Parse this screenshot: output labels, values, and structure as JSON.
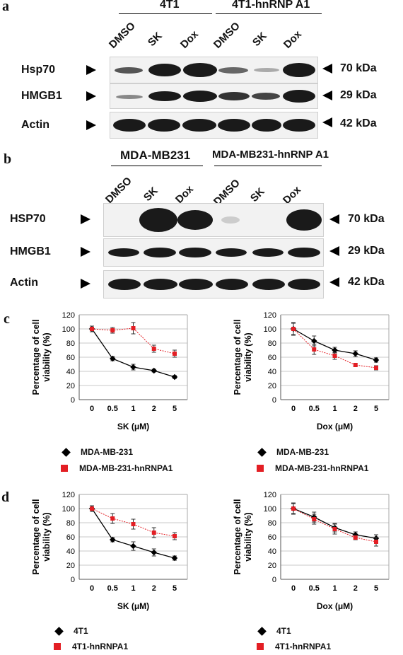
{
  "panel_a": {
    "letter": "a",
    "groups": [
      "4T1",
      "4T1-hnRNP A1"
    ],
    "lanes": [
      "DMSO",
      "SK",
      "Dox",
      "DMSO",
      "SK",
      "Dox"
    ],
    "rows": [
      {
        "label": "Hsp70",
        "kda": "70 kDa"
      },
      {
        "label": "HMGB1",
        "kda": "29 kDa"
      },
      {
        "label": "Actin",
        "kda": "42 kDa"
      }
    ]
  },
  "panel_b": {
    "letter": "b",
    "groups": [
      "MDA-MB231",
      "MDA-MB231-hnRNP A1"
    ],
    "lanes": [
      "DMSO",
      "SK",
      "Dox",
      "DMSO",
      "SK",
      "Dox"
    ],
    "rows": [
      {
        "label": "HSP70",
        "kda": "70 kDa"
      },
      {
        "label": "HMGB1",
        "kda": "29 kDa"
      },
      {
        "label": "Actin",
        "kda": "42 kDa"
      }
    ]
  },
  "panel_c": {
    "letter": "c"
  },
  "panel_d": {
    "letter": "d"
  },
  "colors": {
    "series1": "#000000",
    "series2": "#e31e24"
  },
  "chart_data": [
    {
      "type": "line",
      "panel": "c",
      "xlabel": "SK (μM)",
      "ylabel": "Percentage of cell viability (%)",
      "categories": [
        "0",
        "0.5",
        "1",
        "2",
        "5"
      ],
      "ylim": [
        0,
        120
      ],
      "yticks": [
        0,
        20,
        40,
        60,
        80,
        100,
        120
      ],
      "grid": true,
      "series": [
        {
          "name": "MDA-MB-231",
          "values": [
            100,
            58,
            46,
            41,
            32
          ],
          "err": [
            4,
            3,
            4,
            2,
            2
          ]
        },
        {
          "name": "MDA-MB-231-hnRNPA1",
          "values": [
            100,
            98,
            101,
            72,
            65
          ],
          "err": [
            4,
            4,
            8,
            5,
            5
          ]
        }
      ]
    },
    {
      "type": "line",
      "panel": "c",
      "xlabel": "Dox (μM)",
      "ylabel": "Percentage of cell viability (%)",
      "categories": [
        "0",
        "0.5",
        "1",
        "2",
        "5"
      ],
      "ylim": [
        0,
        120
      ],
      "yticks": [
        0,
        20,
        40,
        60,
        80,
        100,
        120
      ],
      "grid": true,
      "series": [
        {
          "name": "MDA-MB-231",
          "values": [
            100,
            83,
            70,
            65,
            56
          ],
          "err": [
            9,
            7,
            4,
            4,
            3
          ]
        },
        {
          "name": "MDA-MB-231-hnRNPA1",
          "values": [
            100,
            71,
            62,
            49,
            45
          ],
          "err": [
            8,
            7,
            5,
            2,
            3
          ]
        }
      ]
    },
    {
      "type": "line",
      "panel": "d",
      "xlabel": "SK (μM)",
      "ylabel": "Percentage of cell viability (%)",
      "categories": [
        "0",
        "0.5",
        "1",
        "2",
        "5"
      ],
      "ylim": [
        0,
        120
      ],
      "yticks": [
        0,
        20,
        40,
        60,
        80,
        100,
        120
      ],
      "grid": true,
      "series": [
        {
          "name": "4T1",
          "values": [
            100,
            56,
            47,
            38,
            30
          ],
          "err": [
            4,
            3,
            6,
            5,
            3
          ]
        },
        {
          "name": "4T1-hnRNPA1",
          "values": [
            100,
            86,
            78,
            66,
            61
          ],
          "err": [
            4,
            7,
            7,
            7,
            5
          ]
        }
      ]
    },
    {
      "type": "line",
      "panel": "d",
      "xlabel": "Dox (μM)",
      "ylabel": "Percentage of cell viability (%)",
      "categories": [
        "0",
        "0.5",
        "1",
        "2",
        "5"
      ],
      "ylim": [
        0,
        120
      ],
      "yticks": [
        0,
        20,
        40,
        60,
        80,
        100,
        120
      ],
      "grid": true,
      "series": [
        {
          "name": "4T1",
          "values": [
            100,
            88,
            73,
            63,
            58
          ],
          "err": [
            8,
            7,
            6,
            4,
            5
          ]
        },
        {
          "name": "4T1-hnRNPA1",
          "values": [
            100,
            85,
            71,
            59,
            53
          ],
          "err": [
            7,
            7,
            7,
            3,
            6
          ]
        }
      ]
    }
  ]
}
